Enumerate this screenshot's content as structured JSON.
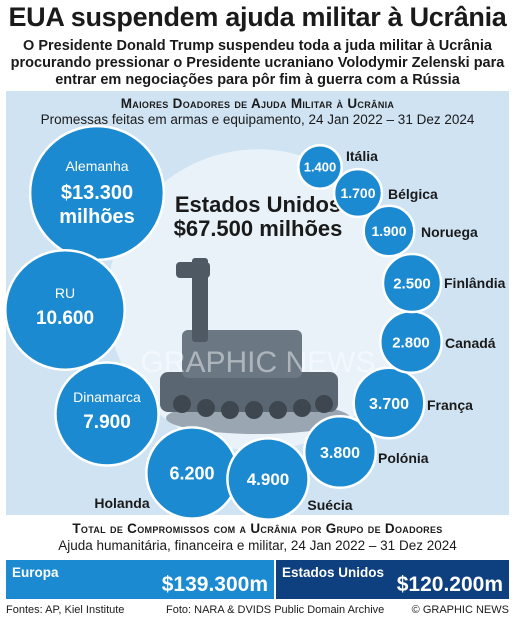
{
  "headline": "EUA suspendem ajuda militar à Ucrânia",
  "intro": "O Presidente Donald Trump suspendeu toda a juda militar à Ucrânia procurando pressionar o Presidente ucraniano Volodymir Zelenski para entrar em negociações para pôr fim à guerra com a Rússia",
  "watermark": "GRAPHIC NEWS",
  "footer": {
    "sources": "Fontes: AP, Kiel Institute",
    "photo": "Foto: NARA & DVIDS Public Domain Archive",
    "copyright": "© GRAPHIC NEWS"
  },
  "colors": {
    "bubble": "#1c8ad0",
    "center": "#e9f2f9",
    "panel": "#cfe3f3",
    "europe": "#1c8ad0",
    "usa": "#0e3f7e"
  },
  "chart_data": [
    {
      "type": "bubble",
      "title": "Maiores Doadores de Ajuda Militar à Ucrânia",
      "subtitle": "Promessas feitas em armas e equipamento, 24 Jan 2022 – 31 Dez 2024",
      "unit": "milhões",
      "center": {
        "name": "Estados Unidos",
        "label": "$67.500 milhões",
        "value": 67500
      },
      "donors": [
        {
          "name": "Alemanha",
          "label": "$13.300 milhões",
          "value": 13300
        },
        {
          "name": "RU",
          "label": "10.600",
          "value": 10600
        },
        {
          "name": "Dinamarca",
          "label": "7.900",
          "value": 7900
        },
        {
          "name": "Holanda",
          "label": "6.200",
          "value": 6200
        },
        {
          "name": "Suécia",
          "label": "4.900",
          "value": 4900
        },
        {
          "name": "Polónia",
          "label": "3.800",
          "value": 3800
        },
        {
          "name": "França",
          "label": "3.700",
          "value": 3700
        },
        {
          "name": "Canadá",
          "label": "2.800",
          "value": 2800
        },
        {
          "name": "Finlândia",
          "label": "2.500",
          "value": 2500
        },
        {
          "name": "Noruega",
          "label": "1.900",
          "value": 1900
        },
        {
          "name": "Bélgica",
          "label": "1.700",
          "value": 1700
        },
        {
          "name": "Itália",
          "label": "1.400",
          "value": 1400
        }
      ]
    },
    {
      "type": "bar",
      "title": "Total de Compromissos com a Ucrânia por Grupo de Doadores",
      "subtitle": "Ajuda humanitária, financeira e militar, 24 Jan 2022 – 31 Dez 2024",
      "categories": [
        "Europa",
        "Estados Unidos"
      ],
      "labels": [
        "$139.300m",
        "$120.200m"
      ],
      "values": [
        139300,
        120200
      ]
    }
  ]
}
